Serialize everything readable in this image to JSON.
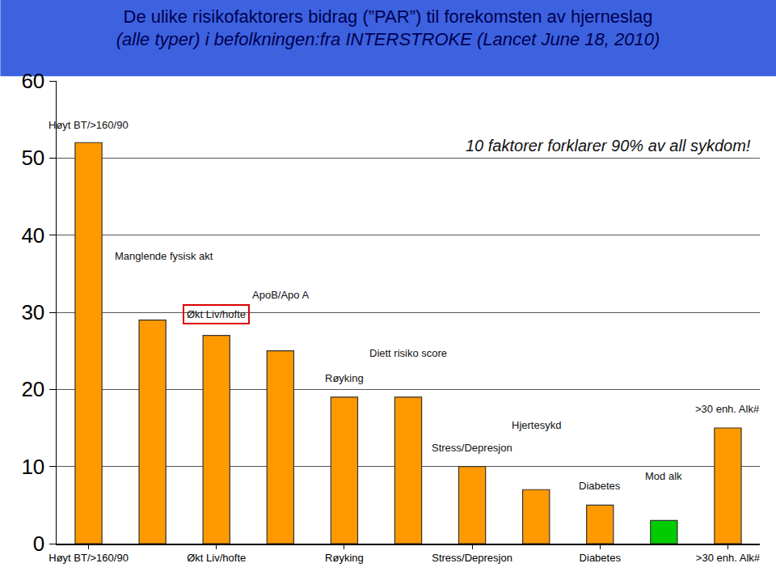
{
  "chart_data": {
    "type": "bar",
    "title": "De ulike risikofaktorers bidrag (”PAR”) til forekomsten av hjerneslag",
    "subtitle": "(alle typer) i befolkningen:fra INTERSTROKE (Lancet June 18, 2010)",
    "categories": [
      "Høyt BT/>160/90",
      null,
      "Økt Liv/hofte",
      null,
      "Røyking",
      null,
      "Stress/Depresjon",
      null,
      "Diabetes",
      null,
      ">30 enh. Alk#"
    ],
    "values": [
      52,
      29,
      27,
      25,
      19,
      19,
      10,
      7,
      5,
      3,
      15
    ],
    "colors": [
      "#ff9900",
      "#ff9900",
      "#ff9900",
      "#ff9900",
      "#ff9900",
      "#ff9900",
      "#ff9900",
      "#ff9900",
      "#ff9900",
      "#00cc00",
      "#ff9900"
    ],
    "annotations": {
      "bars": [
        "Høyt BT/>160/90",
        "Manglende fysisk akt",
        "Økt Liv/hofte",
        "ApoB/Apo A",
        "Røyking",
        "Diett risiko score",
        "Stress/Depresjon",
        "Hjertesykd",
        "Diabetes",
        "Mod alk",
        ">30 enh. Alk#"
      ],
      "note": "10 faktorer forklarer 90% av all sykdom!"
    },
    "ylim": [
      0,
      60
    ],
    "yticks": [
      0,
      10,
      20,
      30,
      40,
      50,
      60
    ],
    "grid": true
  }
}
